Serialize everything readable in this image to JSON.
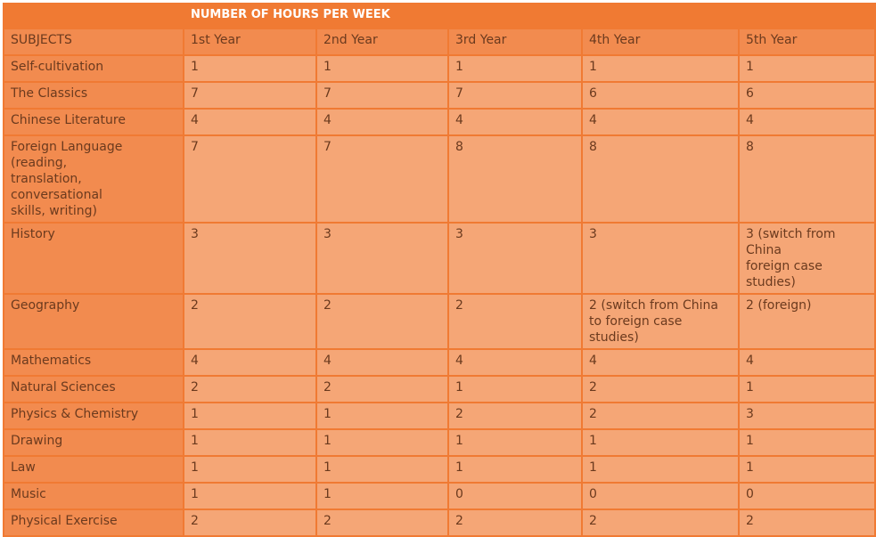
{
  "table": {
    "title": "NUMBER OF HOURS PER WEEK",
    "columns": [
      "SUBJECTS",
      "1st Year",
      "2nd Year",
      "3rd Year",
      "4th Year",
      "5th Year"
    ],
    "rows": [
      {
        "subject": "Self-cultivation",
        "values": [
          "1",
          "1",
          "1",
          "1",
          "1"
        ]
      },
      {
        "subject": "The Classics",
        "values": [
          "7",
          "7",
          "7",
          "6",
          "6"
        ]
      },
      {
        "subject": "Chinese Literature",
        "values": [
          "4",
          "4",
          "4",
          "4",
          "4"
        ]
      },
      {
        "subject": "Foreign Language (reading,\ntranslation, conversational\nskills, writing)",
        "values": [
          "7",
          "7",
          "8",
          "8",
          "8"
        ]
      },
      {
        "subject": "History",
        "values": [
          "3",
          "3",
          "3",
          "3",
          "3 (switch from China\nforeign case studies)"
        ]
      },
      {
        "subject": "Geography",
        "values": [
          "2",
          "2",
          "2",
          "2 (switch from China\nto foreign case studies)",
          "2 (foreign)"
        ]
      },
      {
        "subject": "Mathematics",
        "values": [
          "4",
          "4",
          "4",
          "4",
          "4"
        ]
      },
      {
        "subject": "Natural Sciences",
        "values": [
          "2",
          "2",
          "1",
          "2",
          "1"
        ]
      },
      {
        "subject": "Physics & Chemistry",
        "values": [
          "1",
          "1",
          "2",
          "2",
          "3"
        ]
      },
      {
        "subject": "Drawing",
        "values": [
          "1",
          "1",
          "1",
          "1",
          "1"
        ]
      },
      {
        "subject": "Law",
        "values": [
          "1",
          "1",
          "1",
          "1",
          "1"
        ]
      },
      {
        "subject": "Music",
        "values": [
          "1",
          "1",
          "0",
          "0",
          "0"
        ]
      },
      {
        "subject": "Physical Exercise",
        "values": [
          "2",
          "2",
          "2",
          "2",
          "2"
        ]
      }
    ]
  }
}
